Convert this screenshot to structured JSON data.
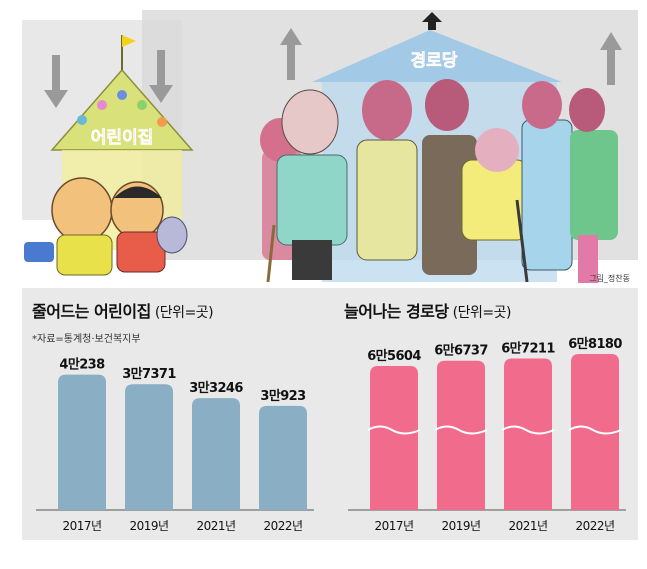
{
  "illustration": {
    "sign_daycare": "어린이집",
    "sign_senior": "경로당",
    "credit": "그림_정찬동"
  },
  "chart_data": [
    {
      "type": "bar",
      "title": "줄어드는 어린이집",
      "unit": "(단위=곳)",
      "source": "*자료=통계청·보건복지부",
      "categories": [
        "2017년",
        "2019년",
        "2021년",
        "2022년"
      ],
      "values": [
        40238,
        37371,
        33246,
        30923
      ],
      "labels": [
        "4만238",
        "3만7371",
        "3만3246",
        "3만923"
      ],
      "ylim": [
        0,
        52000
      ],
      "color": "#8aaec4",
      "axis_break": false
    },
    {
      "type": "bar",
      "title": "늘어나는 경로당",
      "unit": "(단위=곳)",
      "categories": [
        "2017년",
        "2019년",
        "2021년",
        "2022년"
      ],
      "values": [
        65604,
        66737,
        67211,
        68180
      ],
      "labels": [
        "6만5604",
        "6만6737",
        "6만7211",
        "6만8180"
      ],
      "color": "#f06b8c",
      "axis_break": true
    }
  ]
}
